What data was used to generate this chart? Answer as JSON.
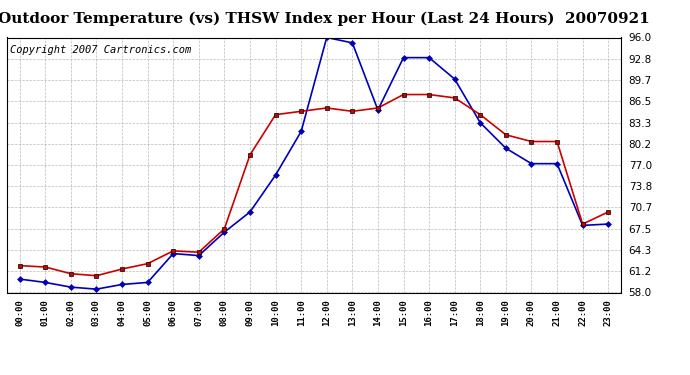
{
  "title": "Outdoor Temperature (vs) THSW Index per Hour (Last 24 Hours)  20070921",
  "copyright": "Copyright 2007 Cartronics.com",
  "x_labels": [
    "00:00",
    "01:00",
    "02:00",
    "03:00",
    "04:00",
    "05:00",
    "06:00",
    "07:00",
    "08:00",
    "09:00",
    "10:00",
    "11:00",
    "12:00",
    "13:00",
    "14:00",
    "15:00",
    "16:00",
    "17:00",
    "18:00",
    "19:00",
    "20:00",
    "21:00",
    "22:00",
    "23:00"
  ],
  "blue_data": [
    60.0,
    59.5,
    58.8,
    58.5,
    59.2,
    59.5,
    63.8,
    63.5,
    67.0,
    70.0,
    75.5,
    82.0,
    96.0,
    95.2,
    85.2,
    93.0,
    93.0,
    89.8,
    83.3,
    79.5,
    77.2,
    77.2,
    68.0,
    68.2
  ],
  "red_data": [
    62.0,
    61.8,
    60.8,
    60.5,
    61.5,
    62.3,
    64.2,
    64.0,
    67.5,
    78.5,
    84.5,
    85.0,
    85.5,
    85.0,
    85.5,
    87.5,
    87.5,
    87.0,
    84.5,
    81.5,
    80.5,
    80.5,
    68.2,
    70.0
  ],
  "ylim": [
    58.0,
    96.0
  ],
  "yticks": [
    58.0,
    61.2,
    64.3,
    67.5,
    70.7,
    73.8,
    77.0,
    80.2,
    83.3,
    86.5,
    89.7,
    92.8,
    96.0
  ],
  "blue_color": "#0000bb",
  "red_color": "#cc0000",
  "bg_color": "#ffffff",
  "plot_bg_color": "#ffffff",
  "grid_color": "#aaaaaa",
  "title_fontsize": 11,
  "copyright_fontsize": 7.5
}
